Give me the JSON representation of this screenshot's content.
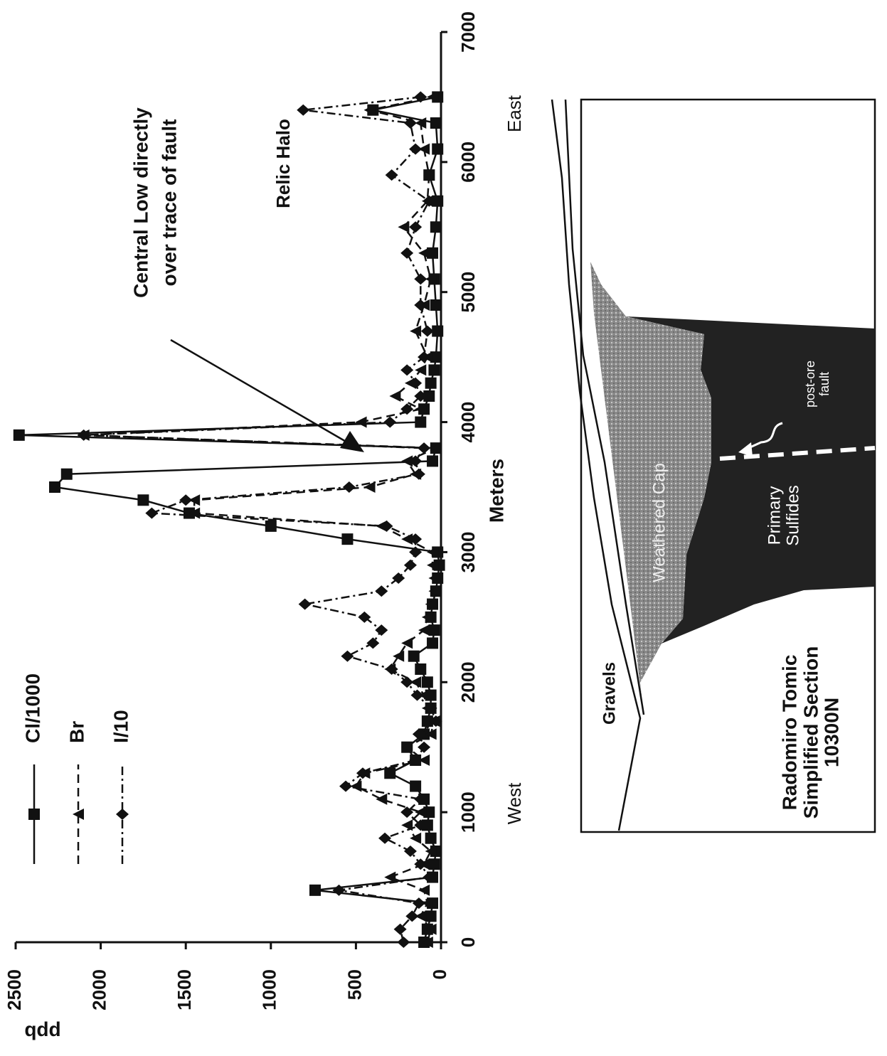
{
  "chart_data": {
    "type": "line",
    "xlabel": "Meters",
    "ylabel": "ppb",
    "x": [
      0,
      100,
      200,
      300,
      400,
      500,
      600,
      700,
      800,
      900,
      1000,
      1100,
      1200,
      1300,
      1400,
      1500,
      1600,
      1700,
      1800,
      1900,
      2000,
      2100,
      2200,
      2300,
      2400,
      2500,
      2600,
      2700,
      2800,
      2900,
      3000,
      3100,
      3200,
      3300,
      3400,
      3500,
      3600,
      3700,
      3800,
      3900,
      4000,
      4100,
      4200,
      4300,
      4400,
      4500,
      4700,
      4900,
      5100,
      5300,
      5500,
      5700,
      5900,
      6100,
      6300,
      6400,
      6500
    ],
    "series": [
      {
        "name": "Cl/1000",
        "color": "#111111",
        "marker": "square",
        "dash": "solid",
        "values": [
          100,
          80,
          60,
          50,
          740,
          50,
          40,
          30,
          60,
          80,
          70,
          100,
          150,
          300,
          150,
          200,
          100,
          80,
          60,
          60,
          80,
          120,
          160,
          50,
          40,
          60,
          50,
          30,
          20,
          10,
          20,
          550,
          1000,
          1480,
          1750,
          2270,
          2200,
          50,
          30,
          2480,
          120,
          100,
          70,
          60,
          40,
          30,
          20,
          30,
          40,
          50,
          30,
          20,
          70,
          20,
          30,
          400,
          20
        ]
      },
      {
        "name": "Br",
        "color": "#111111",
        "marker": "triangle",
        "dash": "dashed",
        "values": [
          80,
          60,
          120,
          80,
          100,
          300,
          100,
          60,
          150,
          200,
          120,
          350,
          500,
          450,
          100,
          200,
          60,
          40,
          80,
          100,
          150,
          300,
          250,
          200,
          100,
          80,
          60,
          40,
          40,
          50,
          50,
          200,
          350,
          1450,
          1450,
          420,
          150,
          200,
          30,
          2100,
          470,
          120,
          270,
          180,
          120,
          80,
          150,
          100,
          60,
          100,
          220,
          80,
          70,
          100,
          120,
          420,
          50
        ]
      },
      {
        "name": "I/10",
        "color": "#111111",
        "marker": "diamond",
        "dash": "dashdot",
        "values": [
          220,
          240,
          170,
          130,
          600,
          70,
          120,
          180,
          330,
          120,
          200,
          120,
          560,
          460,
          150,
          100,
          130,
          30,
          60,
          140,
          200,
          290,
          550,
          400,
          350,
          450,
          800,
          350,
          250,
          180,
          150,
          150,
          320,
          1700,
          1500,
          540,
          130,
          150,
          100,
          2100,
          300,
          200,
          120,
          150,
          200,
          100,
          80,
          120,
          120,
          200,
          150,
          70,
          290,
          150,
          180,
          810,
          120
        ]
      }
    ],
    "xlim": [
      0,
      7000
    ],
    "xticks": [
      0,
      1000,
      2000,
      3000,
      4000,
      5000,
      6000,
      7000
    ],
    "ylim": [
      0,
      2500
    ],
    "yticks": [
      0,
      500,
      1000,
      1500,
      2000,
      2500
    ],
    "grid": false,
    "annotations": {
      "central_low": [
        "Central Low directly",
        "over trace of fault"
      ],
      "relic_halo": "Relic Halo",
      "west": "West",
      "east": "East"
    }
  },
  "diagram": {
    "gravels": "Gravels",
    "weathered_cap": "Weathered Cap",
    "primary_sulfides": [
      "Primary",
      "Sulfides"
    ],
    "fault": [
      "post-ore",
      "fault"
    ],
    "caption": [
      "Radomiro Tomic",
      "Simplified Section",
      "10300N"
    ]
  }
}
